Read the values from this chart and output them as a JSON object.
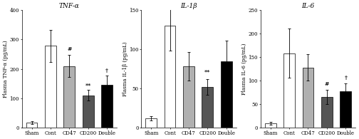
{
  "panels": [
    {
      "title": "TNF-α",
      "ylabel": "Plasma TNF-α (pg/mL)",
      "ylim": [
        0,
        400
      ],
      "yticks": [
        0,
        100,
        200,
        300,
        400
      ],
      "categories": [
        "Sham",
        "Cont",
        "CD47",
        "CD200",
        "Double"
      ],
      "values": [
        18,
        278,
        210,
        110,
        145
      ],
      "errors": [
        5,
        55,
        38,
        18,
        32
      ],
      "colors": [
        "white",
        "white",
        "#b0b0b0",
        "#555555",
        "black"
      ],
      "sig_labels": [
        "",
        "",
        "#",
        "**",
        "†"
      ],
      "sig_offsets": [
        0,
        0,
        8,
        8,
        8
      ]
    },
    {
      "title": "IL-1β",
      "ylabel": "Plasma IL-1β (pg/mL)",
      "ylim": [
        0,
        150
      ],
      "yticks": [
        0,
        50,
        100,
        150
      ],
      "categories": [
        "Sham",
        "Cont",
        "CD47",
        "CD200",
        "Double"
      ],
      "values": [
        12,
        130,
        78,
        52,
        85
      ],
      "errors": [
        3,
        32,
        18,
        10,
        26
      ],
      "colors": [
        "white",
        "white",
        "#b0b0b0",
        "#555555",
        "black"
      ],
      "sig_labels": [
        "",
        "",
        "",
        "**",
        ""
      ],
      "sig_offsets": [
        0,
        0,
        0,
        6,
        0
      ]
    },
    {
      "title": "IL-6",
      "ylabel": "Plasma IL-6 (pg/mL)",
      "ylim": [
        0,
        250
      ],
      "yticks": [
        0,
        50,
        100,
        150,
        200,
        250
      ],
      "categories": [
        "Sham",
        "Cont",
        "CD47",
        "CD200",
        "Double"
      ],
      "values": [
        10,
        158,
        128,
        65,
        78
      ],
      "errors": [
        3,
        52,
        28,
        15,
        16
      ],
      "colors": [
        "white",
        "white",
        "#b0b0b0",
        "#555555",
        "black"
      ],
      "sig_labels": [
        "",
        "",
        "",
        "#",
        "†"
      ],
      "sig_offsets": [
        0,
        0,
        0,
        6,
        6
      ]
    }
  ],
  "bar_width": 0.6,
  "edge_color": "black",
  "tick_fontsize": 5,
  "label_fontsize": 5,
  "title_fontsize": 6.5,
  "sig_fontsize": 5.5,
  "capsize": 1.5,
  "linewidth": 0.5
}
